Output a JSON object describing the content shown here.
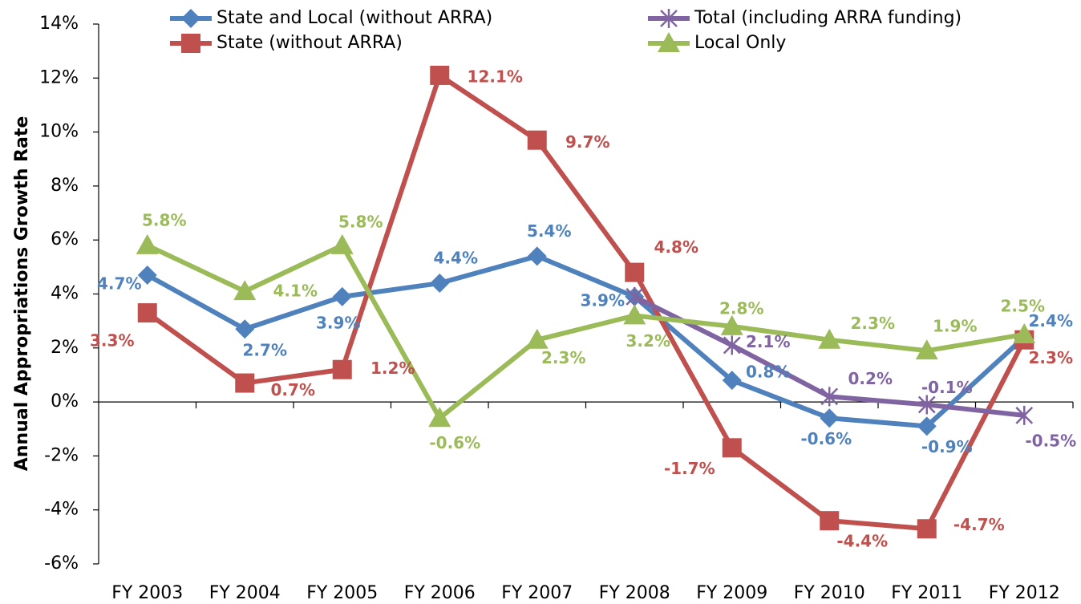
{
  "chart_data": {
    "type": "line",
    "y_label": "Annual Appropriations Growth Rate",
    "categories": [
      "FY 2003",
      "FY 2004",
      "FY 2005",
      "FY 2006",
      "FY 2007",
      "FY 2008",
      "FY 2009",
      "FY 2010",
      "FY 2011",
      "FY 2012"
    ],
    "series": [
      {
        "name": "State and Local (without ARRA)",
        "color": "#4f81bd",
        "marker": "diamond",
        "values": [
          4.7,
          2.7,
          3.9,
          4.4,
          5.4,
          3.9,
          0.8,
          -0.6,
          -0.9,
          2.4
        ],
        "value_labels": [
          "4.7%",
          "2.7%",
          "3.9%",
          "4.4%",
          "5.4%",
          "3.9%",
          "0.8%",
          "-0.6%",
          "-0.9%",
          "2.4%"
        ]
      },
      {
        "name": "State (without ARRA)",
        "color": "#c0504d",
        "marker": "square",
        "values": [
          3.3,
          0.7,
          1.2,
          12.1,
          9.7,
          4.8,
          -1.7,
          -4.4,
          -4.7,
          2.3
        ],
        "value_labels": [
          "3.3%",
          "0.7%",
          "1.2%",
          "12.1%",
          "9.7%",
          "4.8%",
          "-1.7%",
          "-4.4%",
          "-4.7%",
          "2.3%"
        ]
      },
      {
        "name": "Total (including ARRA funding)",
        "color": "#8064a2",
        "marker": "asterisk",
        "values": [
          null,
          null,
          null,
          null,
          null,
          3.9,
          2.1,
          0.2,
          -0.1,
          -0.5
        ],
        "value_labels": [
          null,
          null,
          null,
          null,
          null,
          null,
          "2.1%",
          "0.2%",
          "-0.1%",
          "-0.5%"
        ]
      },
      {
        "name": "Local Only",
        "color": "#9bbb59",
        "marker": "triangle",
        "values": [
          5.8,
          4.1,
          5.8,
          -0.6,
          2.3,
          3.2,
          2.8,
          2.3,
          1.9,
          2.5
        ],
        "value_labels": [
          "5.8%",
          "4.1%",
          "5.8%",
          "-0.6%",
          "2.3%",
          "3.2%",
          "2.8%",
          "2.3%",
          "1.9%",
          "2.5%"
        ]
      }
    ],
    "ylim": [
      -6,
      14
    ],
    "yticks": [
      {
        "value": -6,
        "label": "-6%"
      },
      {
        "value": -4,
        "label": "-4%"
      },
      {
        "value": -2,
        "label": "-2%"
      },
      {
        "value": 0,
        "label": "0%"
      },
      {
        "value": 2,
        "label": "2%"
      },
      {
        "value": 4,
        "label": "4%"
      },
      {
        "value": 6,
        "label": "6%"
      },
      {
        "value": 8,
        "label": "8%"
      },
      {
        "value": 10,
        "label": "10%"
      },
      {
        "value": 12,
        "label": "12%"
      },
      {
        "value": 14,
        "label": "14%"
      }
    ],
    "grid": false,
    "legend": "top"
  }
}
